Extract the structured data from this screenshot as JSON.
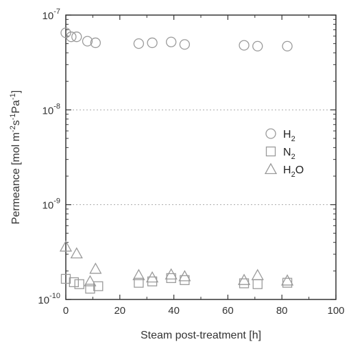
{
  "chart_data": {
    "type": "scatter",
    "xlabel": "Steam post-treatment [h]",
    "ylabel": "Permeance [mol m",
    "ylabel_parts": [
      "Permeance [mol m",
      "-2",
      "s",
      "-1",
      "Pa",
      "-1",
      "]"
    ],
    "xlim": [
      0,
      100
    ],
    "ylim": [
      1e-10,
      1e-07
    ],
    "yscale": "log",
    "x_ticks": [
      0,
      20,
      40,
      60,
      80,
      100
    ],
    "x_tick_labels": [
      "0",
      "20",
      "40",
      "60",
      "80",
      "100"
    ],
    "y_ticks": [
      {
        "value": 1e-07,
        "base": "10",
        "exp": "-7"
      },
      {
        "value": 1e-08,
        "base": "10",
        "exp": "-8"
      },
      {
        "value": 1e-09,
        "base": "10",
        "exp": "-9"
      },
      {
        "value": 1e-10,
        "base": "10",
        "exp": "-10"
      }
    ],
    "grid": "dotted horizontal at 1e-8 and 1e-9",
    "legend_position": "right-middle",
    "series": [
      {
        "name": "H2",
        "label_main": "H",
        "label_sub": "2",
        "label_tail": "",
        "marker": "circle",
        "x": [
          0,
          2,
          4,
          8,
          11,
          27,
          32,
          39,
          44,
          66,
          71,
          82
        ],
        "y": [
          6.5e-08,
          5.9e-08,
          5.9e-08,
          5.3e-08,
          5.1e-08,
          5e-08,
          5.1e-08,
          5.2e-08,
          4.9e-08,
          4.8e-08,
          4.7e-08,
          4.7e-08
        ]
      },
      {
        "name": "N2",
        "label_main": "N",
        "label_sub": "2",
        "label_tail": "",
        "marker": "square",
        "x": [
          0,
          3,
          5,
          9,
          12,
          27,
          32,
          39,
          44,
          66,
          71,
          82
        ],
        "y": [
          1.65e-10,
          1.52e-10,
          1.45e-10,
          1.3e-10,
          1.38e-10,
          1.5e-10,
          1.55e-10,
          1.68e-10,
          1.6e-10,
          1.48e-10,
          1.45e-10,
          1.5e-10
        ]
      },
      {
        "name": "H2O",
        "label_main": "H",
        "label_sub": "2",
        "label_tail": "O",
        "marker": "triangle",
        "x": [
          0,
          4,
          9,
          11,
          27,
          32,
          39,
          44,
          66,
          71,
          82
        ],
        "y": [
          3.6e-10,
          3.05e-10,
          1.55e-10,
          2.1e-10,
          1.8e-10,
          1.7e-10,
          1.83e-10,
          1.75e-10,
          1.6e-10,
          1.8e-10,
          1.58e-10
        ]
      }
    ]
  },
  "colors": {
    "marker_stroke": "#9a9a9a",
    "axis": "#333333",
    "grid": "#aaaaaa",
    "text": "#333333"
  }
}
